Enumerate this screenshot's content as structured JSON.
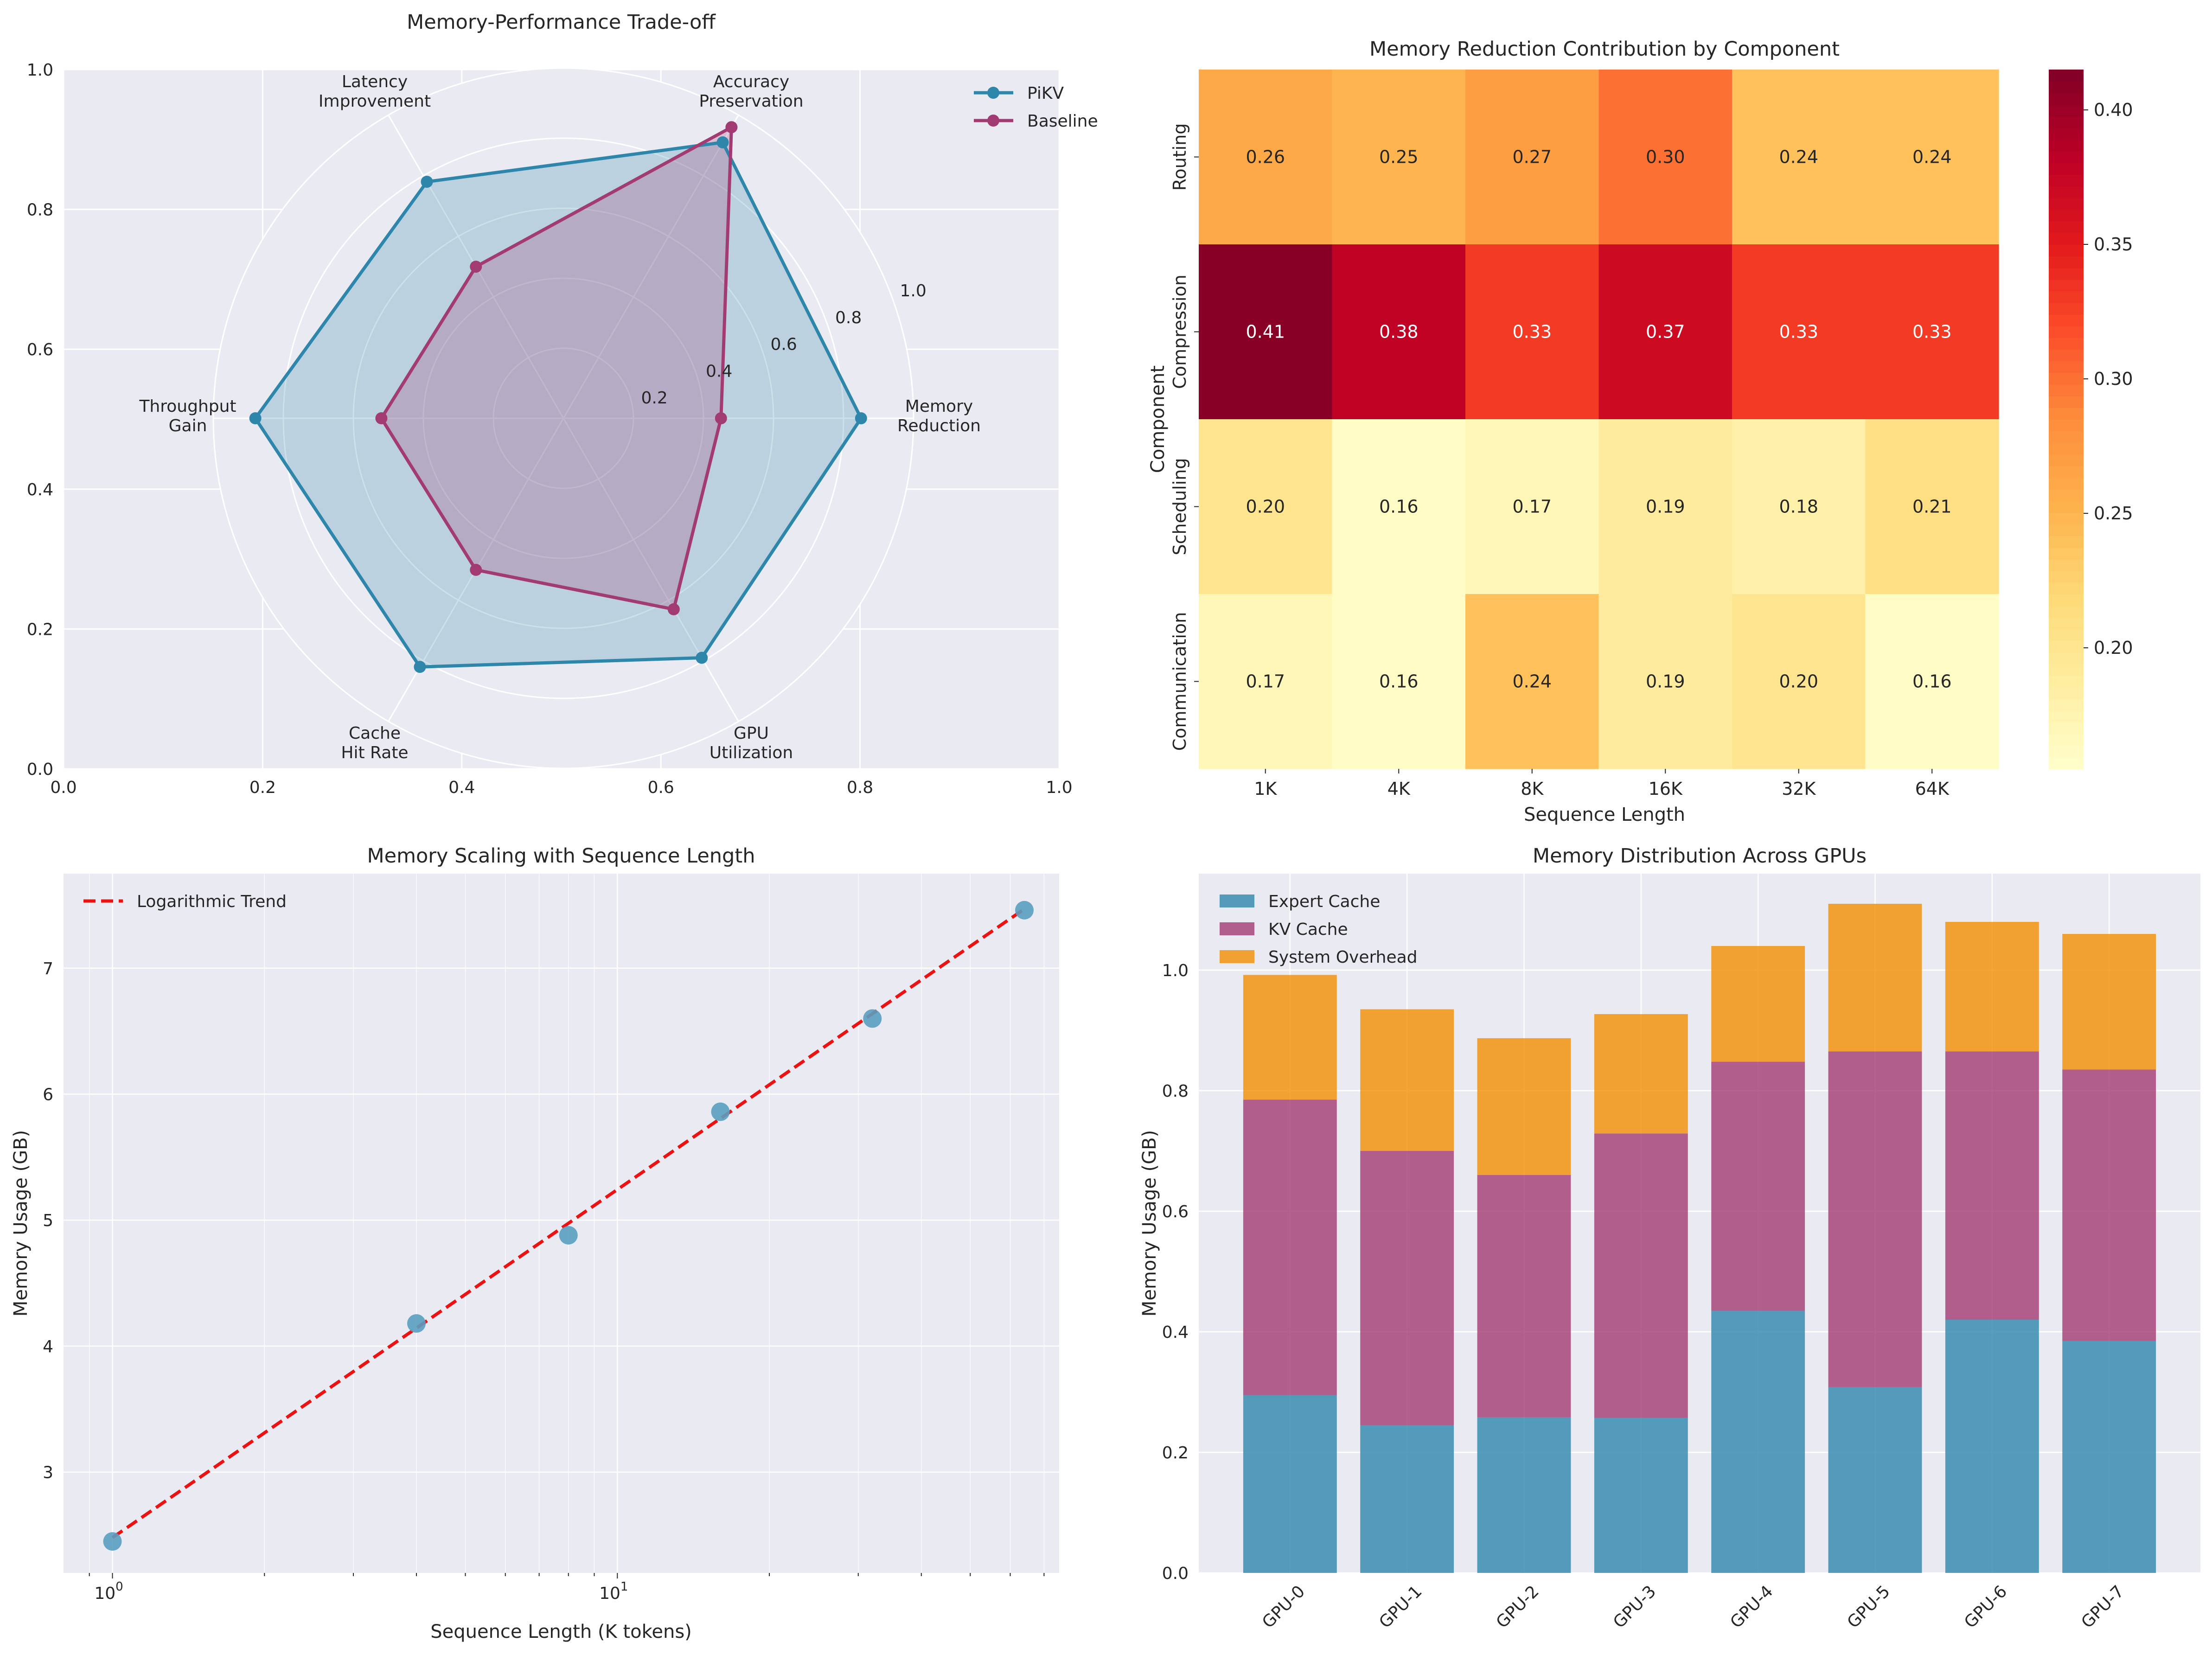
{
  "figure": {
    "background": "#ffffff"
  },
  "colors": {
    "axes_bg": "#eaeaf2",
    "grid": "#ffffff",
    "text": "#262626",
    "pikv": "#2e86ab",
    "baseline": "#a23b72",
    "trend": "#ee1111",
    "scatter": "#5a9fc0",
    "expert": "#2e86ab",
    "kv": "#a23b72",
    "overhead": "#f18f01"
  },
  "chart_data": [
    {
      "id": "radar",
      "type": "radar",
      "title": "Memory-Performance Trade-off",
      "outer_axis": {
        "xlim": [
          0,
          1
        ],
        "ylim": [
          0,
          1
        ],
        "xticks": [
          "0.0",
          "0.2",
          "0.4",
          "0.6",
          "0.8",
          "1.0"
        ],
        "yticks": [
          "0.0",
          "0.2",
          "0.4",
          "0.6",
          "0.8",
          "1.0"
        ]
      },
      "categories": [
        "Memory\nReduction",
        "Accuracy\nPreservation",
        "Latency\nImprovement",
        "Throughput\nGain",
        "Cache\nHit Rate",
        "GPU\nUtilization"
      ],
      "radial_ticks": [
        "0.2",
        "0.4",
        "0.6",
        "0.8",
        "1.0"
      ],
      "rlim": [
        0,
        1
      ],
      "series": [
        {
          "name": "PiKV",
          "values": [
            0.85,
            0.91,
            0.78,
            0.88,
            0.82,
            0.79
          ]
        },
        {
          "name": "Baseline",
          "values": [
            0.45,
            0.96,
            0.5,
            0.52,
            0.5,
            0.63
          ]
        }
      ],
      "legend": [
        "PiKV",
        "Baseline"
      ],
      "legend_position": "top-right"
    },
    {
      "id": "heatmap",
      "type": "heatmap",
      "title": "Memory Reduction Contribution by Component",
      "xlabel": "Sequence Length",
      "ylabel": "Component",
      "x_categories": [
        "1K",
        "4K",
        "8K",
        "16K",
        "32K",
        "64K"
      ],
      "y_categories": [
        "Routing",
        "Compression",
        "Scheduling",
        "Communication"
      ],
      "values": [
        [
          0.26,
          0.25,
          0.27,
          0.3,
          0.24,
          0.24
        ],
        [
          0.41,
          0.38,
          0.33,
          0.37,
          0.33,
          0.33
        ],
        [
          0.2,
          0.16,
          0.17,
          0.19,
          0.18,
          0.21
        ],
        [
          0.17,
          0.16,
          0.24,
          0.19,
          0.2,
          0.16
        ]
      ],
      "labels": [
        [
          "0.26",
          "0.25",
          "0.27",
          "0.30",
          "0.24",
          "0.24"
        ],
        [
          "0.41",
          "0.38",
          "0.33",
          "0.37",
          "0.33",
          "0.33"
        ],
        [
          "0.20",
          "0.16",
          "0.17",
          "0.19",
          "0.18",
          "0.21"
        ],
        [
          "0.17",
          "0.16",
          "0.24",
          "0.19",
          "0.20",
          "0.16"
        ]
      ],
      "vmin": 0.155,
      "vmax": 0.415,
      "colormap": "YlOrRd",
      "colorbar_ticks": [
        0.2,
        0.25,
        0.3,
        0.35,
        0.4
      ],
      "colorbar_tick_labels": [
        "0.20",
        "0.25",
        "0.30",
        "0.35",
        "0.40"
      ]
    },
    {
      "id": "scaling",
      "type": "scatter",
      "title": "Memory Scaling with Sequence Length",
      "xlabel": "Sequence Length (K tokens)",
      "ylabel": "Memory Usage (GB)",
      "x_scale": "log",
      "xlim": [
        0.8,
        75
      ],
      "ylim": [
        2.2,
        7.75
      ],
      "x_major_ticks": [
        1,
        10
      ],
      "x_tick_base": "10",
      "x_tick_exponents": [
        "0",
        "1"
      ],
      "yticks": [
        3,
        4,
        5,
        6,
        7
      ],
      "ytick_labels": [
        "3",
        "4",
        "5",
        "6",
        "7"
      ],
      "x": [
        1,
        4,
        8,
        16,
        32,
        64
      ],
      "y": [
        2.45,
        4.18,
        4.88,
        5.86,
        6.6,
        7.46
      ],
      "trend": {
        "label": "Logarithmic Trend",
        "x": [
          1,
          64
        ],
        "y": [
          2.48,
          7.47
        ]
      },
      "legend": [
        "Logarithmic Trend"
      ],
      "legend_position": "top-left"
    },
    {
      "id": "gpu",
      "type": "bar",
      "stacked": true,
      "title": "Memory Distribution Across GPUs",
      "ylabel": "Memory Usage (GB)",
      "categories": [
        "GPU-0",
        "GPU-1",
        "GPU-2",
        "GPU-3",
        "GPU-4",
        "GPU-5",
        "GPU-6",
        "GPU-7"
      ],
      "ylim": [
        0,
        1.16
      ],
      "yticks": [
        0.0,
        0.2,
        0.4,
        0.6,
        0.8,
        1.0
      ],
      "ytick_labels": [
        "0.0",
        "0.2",
        "0.4",
        "0.6",
        "0.8",
        "1.0"
      ],
      "series": [
        {
          "name": "Expert Cache",
          "values": [
            0.295,
            0.245,
            0.258,
            0.257,
            0.435,
            0.308,
            0.42,
            0.385
          ]
        },
        {
          "name": "KV Cache",
          "values": [
            0.49,
            0.455,
            0.402,
            0.472,
            0.413,
            0.557,
            0.445,
            0.45
          ]
        },
        {
          "name": "System Overhead",
          "values": [
            0.207,
            0.235,
            0.227,
            0.198,
            0.192,
            0.245,
            0.215,
            0.225
          ]
        }
      ],
      "legend": [
        "Expert Cache",
        "KV Cache",
        "System Overhead"
      ],
      "legend_position": "top-left"
    }
  ]
}
